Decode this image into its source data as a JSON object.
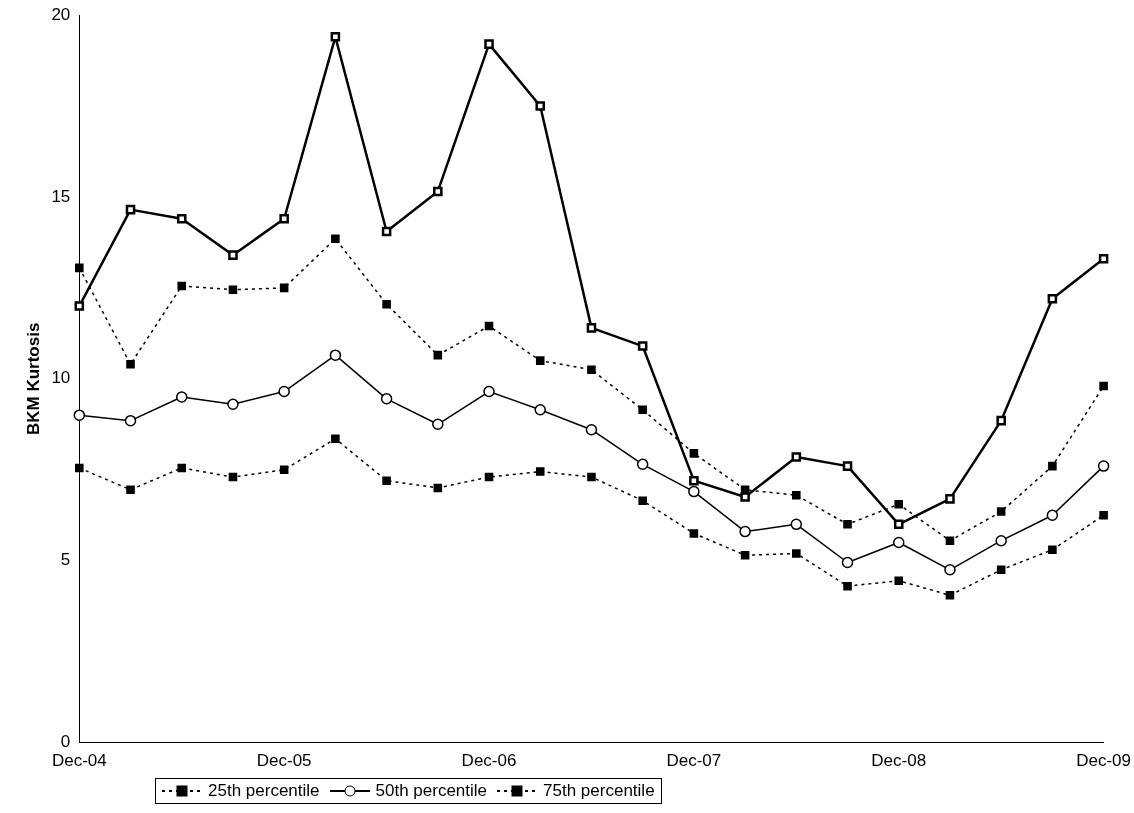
{
  "chart_data": {
    "type": "line",
    "ylabel": "BKM Kurtosis",
    "categories": [
      "Dec-04",
      null,
      null,
      null,
      "Dec-05",
      null,
      null,
      null,
      "Dec-06",
      null,
      null,
      null,
      "Dec-07",
      null,
      null,
      null,
      "Dec-08",
      null,
      null,
      null,
      "Dec-09"
    ],
    "ylim": [
      0,
      20
    ],
    "yticks": [
      0,
      5,
      10,
      15,
      20
    ],
    "grid": false,
    "legend": "bottom",
    "series": [
      {
        "name": "25th percentile",
        "color": "#000000",
        "marker": "square",
        "line_style": "dotted",
        "values": [
          7.55,
          6.95,
          7.55,
          7.3,
          7.5,
          8.35,
          7.2,
          7.0,
          7.3,
          7.45,
          7.3,
          6.65,
          5.75,
          5.15,
          5.2,
          4.3,
          4.45,
          4.05,
          4.75,
          5.3,
          6.25
        ]
      },
      {
        "name": "50th percentile",
        "color": "#000000",
        "marker": "circle",
        "line_style": "solid",
        "values": [
          9.0,
          8.85,
          9.5,
          9.3,
          9.65,
          10.65,
          9.45,
          8.75,
          9.65,
          9.15,
          8.6,
          7.65,
          6.9,
          5.8,
          6.0,
          4.95,
          5.5,
          4.75,
          5.55,
          6.25,
          7.6
        ]
      },
      {
        "name": "75th percentile",
        "color": "#000000",
        "marker": "square",
        "line_style": "dotted",
        "values": [
          13.05,
          10.4,
          12.55,
          12.45,
          12.5,
          13.85,
          12.05,
          10.65,
          11.45,
          10.5,
          10.25,
          9.15,
          7.95,
          6.95,
          6.8,
          6.0,
          6.55,
          5.55,
          6.35,
          7.6,
          9.8
        ]
      },
      {
        "color": "#000000",
        "marker": "square",
        "line_style": "solid",
        "values": [
          12.0,
          14.65,
          14.4,
          13.4,
          14.4,
          19.4,
          14.05,
          15.15,
          19.2,
          17.5,
          11.4,
          10.9,
          7.2,
          6.75,
          7.85,
          7.6,
          6.0,
          6.7,
          8.85,
          12.2,
          13.3
        ]
      }
    ]
  }
}
